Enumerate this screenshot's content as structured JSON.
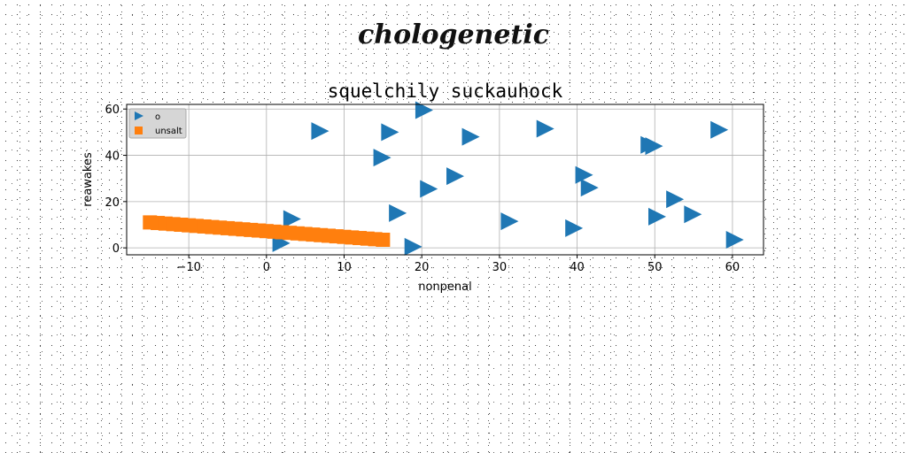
{
  "figure": {
    "suptitle": "chologenetic"
  },
  "chart_data": {
    "type": "scatter",
    "title": "squelchily suckauhock",
    "xlabel": "nonpenal",
    "ylabel": "reawakes",
    "xlim": [
      -18,
      64
    ],
    "ylim": [
      -3,
      62
    ],
    "xticks": [
      -10,
      0,
      10,
      20,
      30,
      40,
      50,
      60
    ],
    "xtick_labels": [
      "−10",
      "0",
      "10",
      "20",
      "30",
      "40",
      "50",
      "60"
    ],
    "yticks": [
      0,
      20,
      40,
      60
    ],
    "ytick_labels": [
      "0",
      "20",
      "40",
      "60"
    ],
    "grid": true,
    "legend": "top-left",
    "series": [
      {
        "name": "o",
        "marker": "triangle-right",
        "color": "#1f77b4",
        "x": [
          20.2,
          6.8,
          15.8,
          26.2,
          35.8,
          14.8,
          24.2,
          20.8,
          40.8,
          41.5,
          49.2,
          49.8,
          58.2,
          52.5,
          54.8,
          50.2,
          60.2,
          16.8,
          3.2,
          31.2,
          39.5,
          18.8,
          1.8
        ],
        "y": [
          59.5,
          50.5,
          50.0,
          48.0,
          51.5,
          39.0,
          31.0,
          25.5,
          31.5,
          26.0,
          44.5,
          44.0,
          51.0,
          21.0,
          14.5,
          13.5,
          3.5,
          15.0,
          12.5,
          11.5,
          8.5,
          0.5,
          2.0
        ]
      },
      {
        "name": "unsalt",
        "marker": "square",
        "color": "#ff7f0e",
        "x": [
          -15.0,
          -14.0,
          -13.0,
          -12.0,
          -11.0,
          -10.0,
          -9.0,
          -8.0,
          -7.0,
          -6.0,
          -5.0,
          -4.0,
          -3.0,
          -2.0,
          -1.0,
          0.0,
          1.0,
          2.0,
          3.0,
          4.0,
          5.0,
          6.0,
          7.0,
          8.0,
          9.0,
          10.0,
          11.0,
          12.0,
          13.0,
          14.0,
          15.0
        ],
        "y": [
          11.0,
          10.75,
          10.5,
          10.25,
          10.0,
          9.75,
          9.5,
          9.25,
          9.0,
          8.75,
          8.5,
          8.25,
          8.0,
          7.75,
          7.5,
          7.25,
          7.0,
          6.75,
          6.5,
          6.25,
          6.0,
          5.75,
          5.5,
          5.25,
          5.0,
          4.75,
          4.5,
          4.25,
          4.0,
          3.75,
          3.5
        ]
      }
    ]
  }
}
